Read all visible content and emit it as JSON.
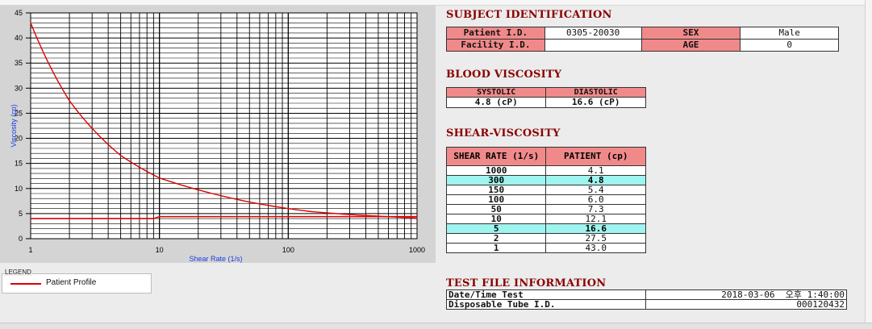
{
  "colors": {
    "curve": "#dd0000",
    "axis_label": "#1a3de0",
    "section_title": "#8a0000",
    "header_cell": "#f08a8a",
    "highlight_row": "#9ff4ef"
  },
  "chart_data": {
    "type": "line",
    "xscale": "log",
    "xlim": [
      1,
      1000
    ],
    "ylim": [
      0,
      45
    ],
    "xlabel": "Shear Rate (1/s)",
    "ylabel": "Viscosity (cp)",
    "x_ticks": [
      "1",
      "10",
      "100",
      "1000"
    ],
    "y_ticks": [
      "0",
      "5",
      "10",
      "15",
      "20",
      "25",
      "30",
      "35",
      "40",
      "45"
    ],
    "grid": true,
    "series": [
      {
        "name": "Patient Profile",
        "x": [
          1,
          2,
          5,
          10,
          50,
          100,
          150,
          300,
          1000
        ],
        "y": [
          43.0,
          27.5,
          16.6,
          12.1,
          7.3,
          6.0,
          5.4,
          4.8,
          4.1
        ]
      }
    ],
    "reference_line": {
      "x": [
        1,
        9,
        10,
        1000
      ],
      "y": [
        4,
        4,
        4.4,
        4.4
      ]
    }
  },
  "legend": {
    "title": "LEGEND",
    "items": [
      {
        "label": "Patient Profile"
      }
    ]
  },
  "subject": {
    "title": "SUBJECT IDENTIFICATION",
    "patient_id_label": "Patient I.D.",
    "patient_id": "0305-20030",
    "sex_label": "SEX",
    "sex": "Male",
    "facility_label": "Facility I.D.",
    "facility": "",
    "age_label": "AGE",
    "age": "0"
  },
  "blood": {
    "title": "BLOOD VISCOSITY",
    "systolic_label": "SYSTOLIC",
    "diastolic_label": "DIASTOLIC",
    "systolic": "4.8 (cP)",
    "diastolic": "16.6 (cP)"
  },
  "shear": {
    "title": "SHEAR-VISCOSITY",
    "col_rate": "SHEAR RATE (1/s)",
    "col_patient": "PATIENT (cp)",
    "rows": [
      {
        "rate": "1000",
        "value": "4.1"
      },
      {
        "rate": "300",
        "value": "4.8"
      },
      {
        "rate": "150",
        "value": "5.4"
      },
      {
        "rate": "100",
        "value": "6.0"
      },
      {
        "rate": "50",
        "value": "7.3"
      },
      {
        "rate": "10",
        "value": "12.1"
      },
      {
        "rate": "5",
        "value": "16.6"
      },
      {
        "rate": "2",
        "value": "27.5"
      },
      {
        "rate": "1",
        "value": "43.0"
      }
    ]
  },
  "testfile": {
    "title": "TEST FILE INFORMATION",
    "datetime_label": "Date/Time Test",
    "datetime": "2018-03-06  오후 1:40:00",
    "tube_label": "Disposable Tube I.D.",
    "tube": "000120432"
  }
}
